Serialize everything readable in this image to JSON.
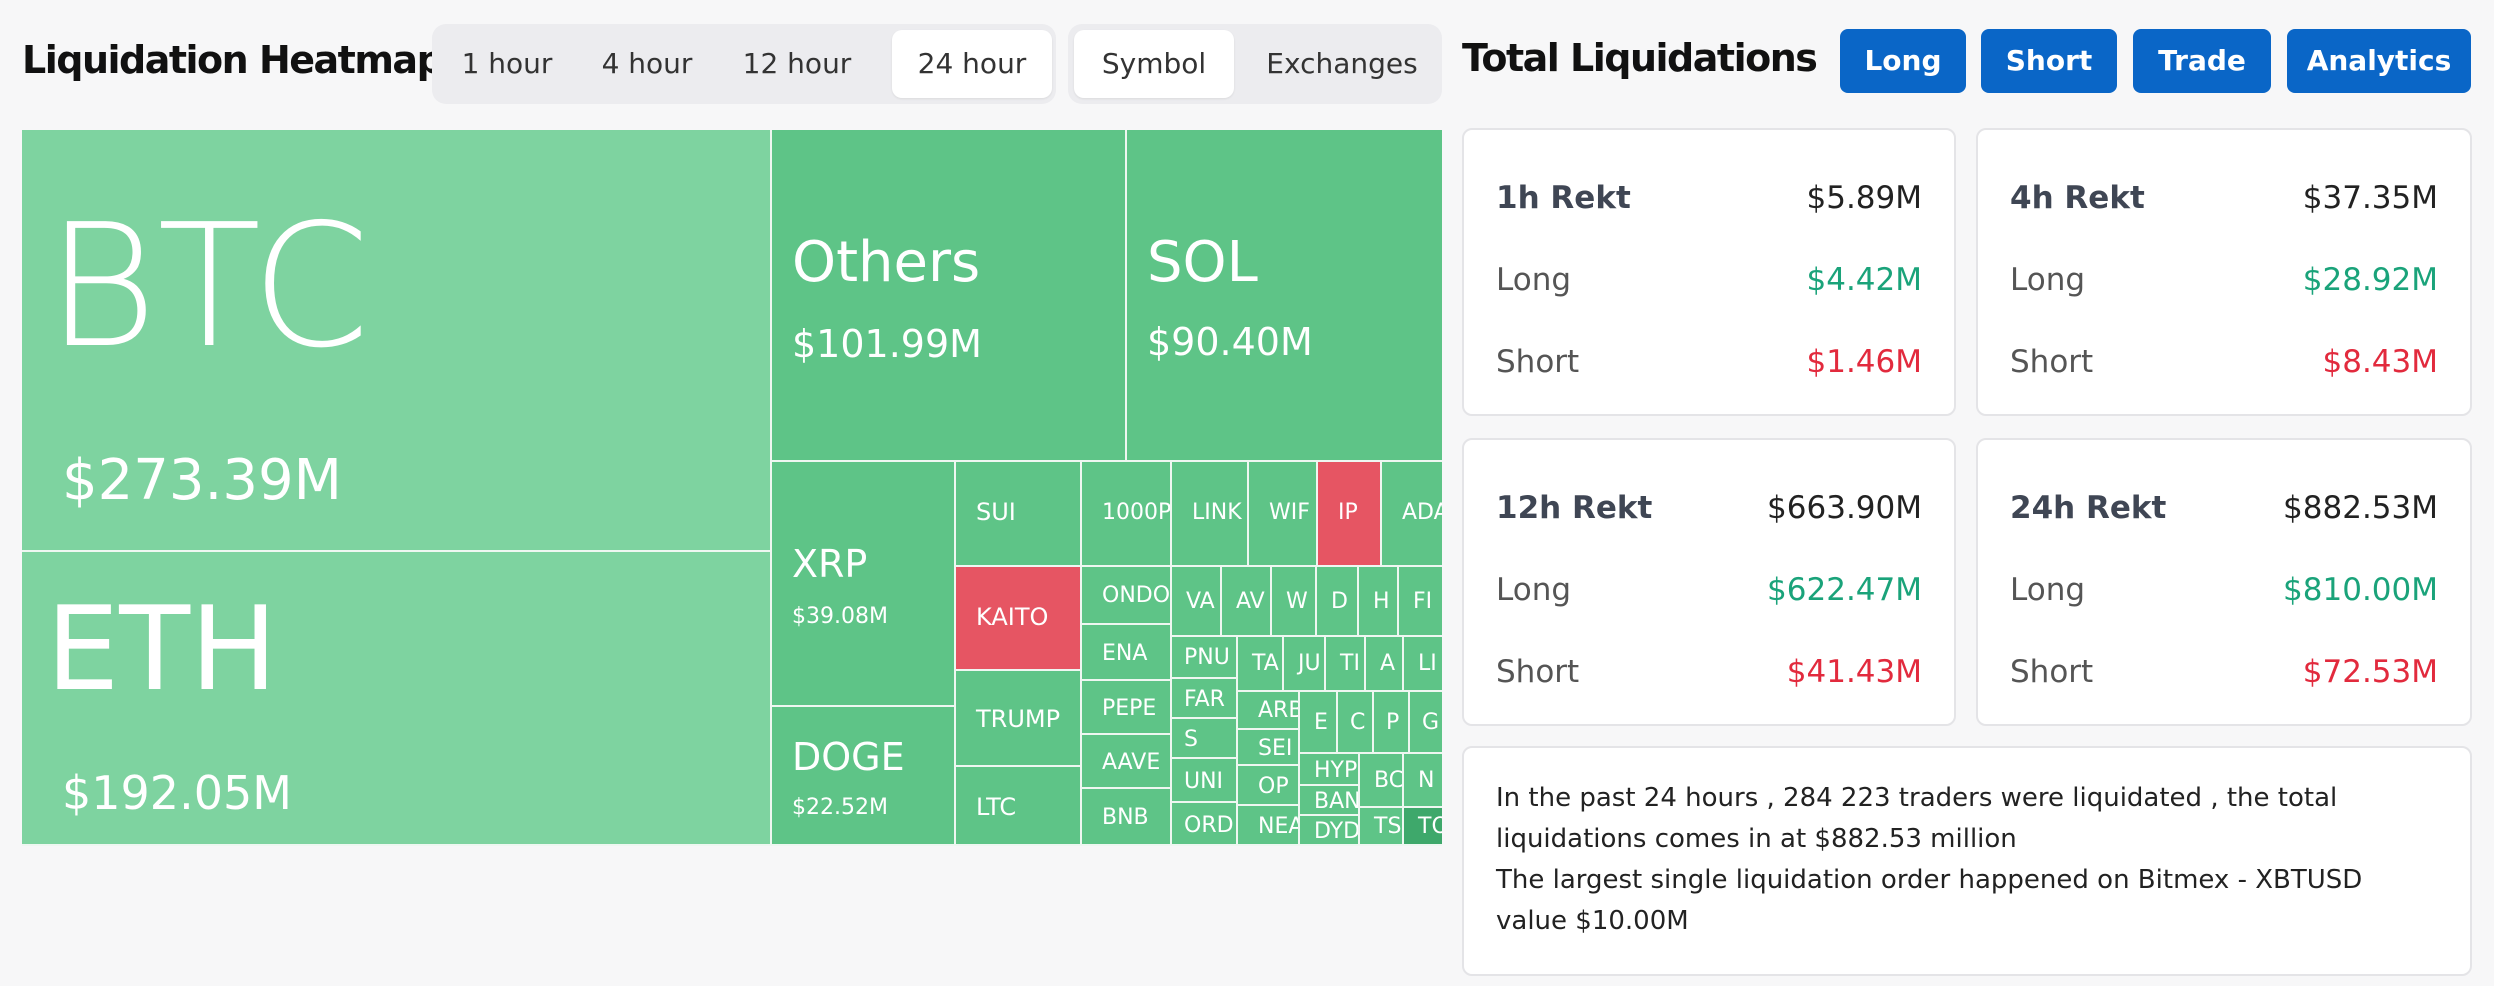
{
  "heatmap_title": "Liquidation Heatmap",
  "timeframes": [
    "1 hour",
    "4 hour",
    "12 hour",
    "24 hour"
  ],
  "timeframe_selected": "24 hour",
  "group_tabs": [
    "Symbol",
    "Exchanges"
  ],
  "group_selected": "Symbol",
  "total_title": "Total Liquidations",
  "buttons": [
    "Long",
    "Short",
    "Trade",
    "Analytics"
  ],
  "colors": {
    "button_blue": "#0a66c7",
    "tile_green": "#5ec487",
    "tile_light_green": "#7ed3a0",
    "tile_red": "#e65563",
    "long_green": "#1aa37a",
    "short_red": "#e22a3d"
  },
  "tiles": {
    "btc": {
      "symbol": "BTC",
      "amount": "$273.39M"
    },
    "eth": {
      "symbol": "ETH",
      "amount": "$192.05M"
    },
    "others": {
      "symbol": "Others",
      "amount": "$101.99M"
    },
    "sol": {
      "symbol": "SOL",
      "amount": "$90.40M"
    },
    "xrp": {
      "symbol": "XRP",
      "amount": "$39.08M"
    },
    "doge": {
      "symbol": "DOGE",
      "amount": "$22.52M"
    },
    "sui": "SUI",
    "kaito": "KAITO",
    "trump": "TRUMP",
    "ltc": "LTC",
    "pepe1000": "1000P",
    "ondo": "ONDO",
    "ena": "ENA",
    "pepe": "PEPE",
    "aave": "AAVE",
    "bnb": "BNB",
    "link": "LINK",
    "wif": "WIF",
    "ip": "IP",
    "ada": "ADA",
    "va": "VA",
    "av": "AV",
    "wl": "W",
    "dc": "D",
    "hh": "H",
    "fi": "FI",
    "pnut": "PNU",
    "fart": "FAR",
    "ss": "S",
    "uni": "UNI",
    "ordi": "ORD",
    "ta": "TA",
    "ju": "JU",
    "ti": "TI",
    "aa": "A",
    "li": "LI",
    "arb": "ARB",
    "sei": "SEI",
    "op": "OP",
    "near": "NEA",
    "ee": "E",
    "cc": "C",
    "pp": "P",
    "gg": "G",
    "hype": "HYP",
    "bnbx": "BC",
    "nn": "N",
    "ban": "BAN",
    "dydx": "DYD",
    "ts": "TS",
    "to": "TO"
  },
  "cards": [
    {
      "title": "1h Rekt",
      "total": "$5.89M",
      "long_label": "Long",
      "long": "$4.42M",
      "short_label": "Short",
      "short": "$1.46M"
    },
    {
      "title": "4h Rekt",
      "total": "$37.35M",
      "long_label": "Long",
      "long": "$28.92M",
      "short_label": "Short",
      "short": "$8.43M"
    },
    {
      "title": "12h Rekt",
      "total": "$663.90M",
      "long_label": "Long",
      "long": "$622.47M",
      "short_label": "Short",
      "short": "$41.43M"
    },
    {
      "title": "24h Rekt",
      "total": "$882.53M",
      "long_label": "Long",
      "long": "$810.00M",
      "short_label": "Short",
      "short": "$72.53M"
    }
  ],
  "summary": {
    "line1": "In the past 24 hours , 284 223 traders were liquidated , the total liquidations comes in at $882.53 million",
    "line2": "The largest single liquidation order happened on Bitmex - XBTUSD value $10.00M"
  }
}
